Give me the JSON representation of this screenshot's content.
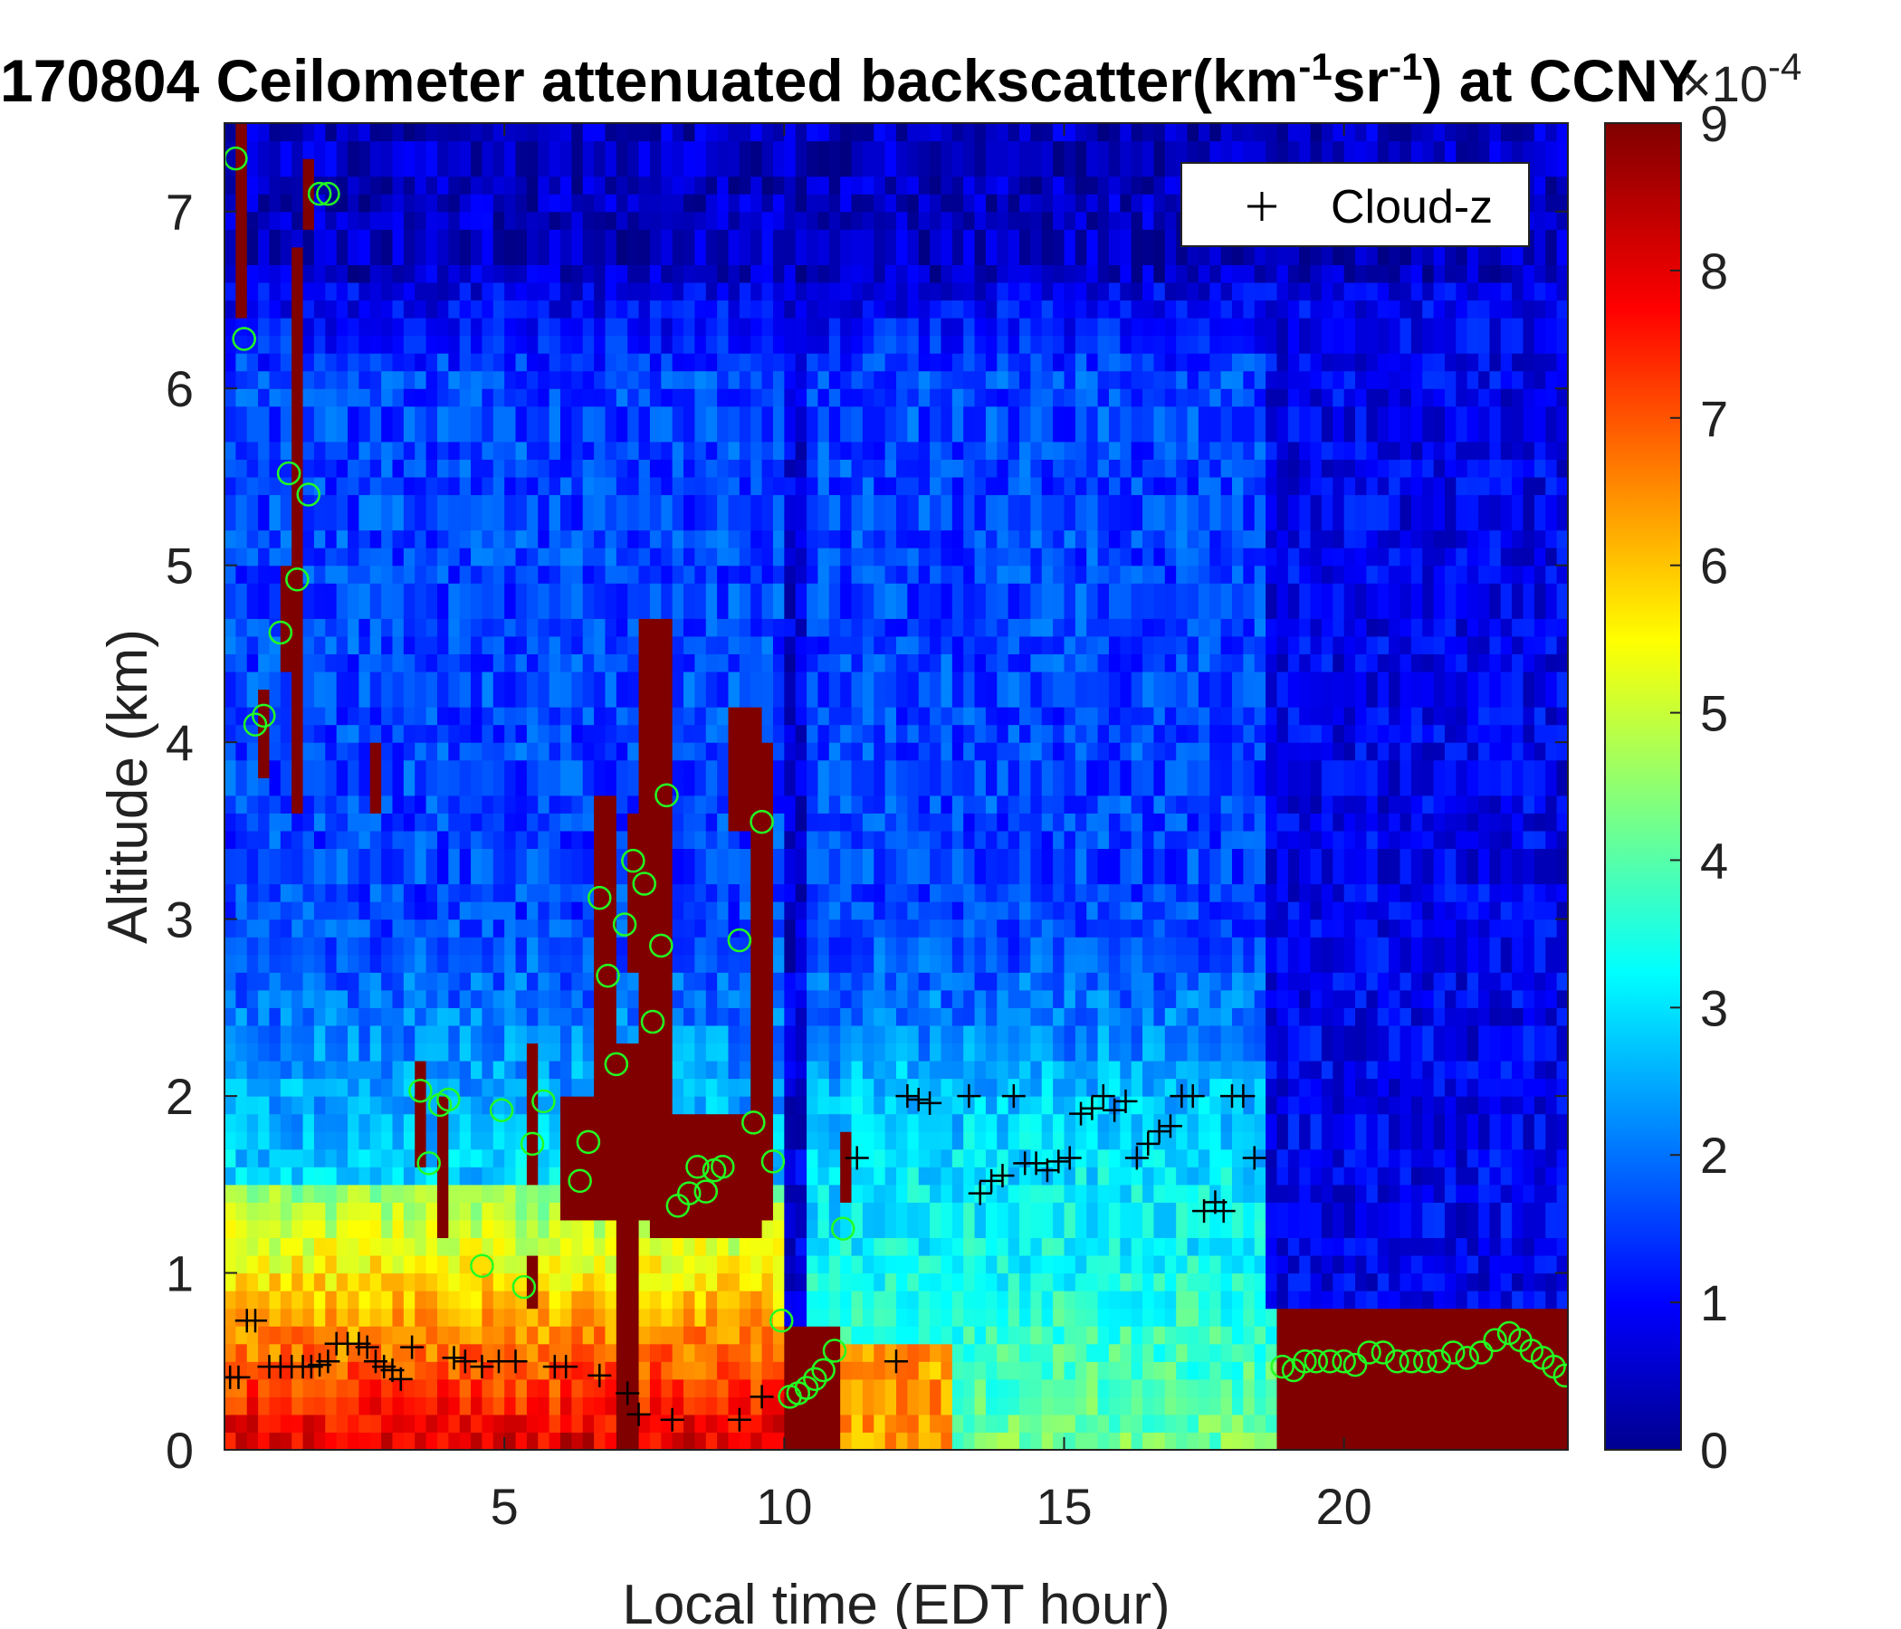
{
  "chart_data": {
    "type": "heatmap",
    "title": {
      "prefix": "170804 Ceilometer attenuated backscatter(km",
      "sup1": "-1",
      "mid": "sr",
      "sup2": "-1",
      "suffix": ") at CCNY"
    },
    "xlabel": "Local time (EDT hour)",
    "ylabel": "Altitude (km)",
    "xlim": [
      0,
      24
    ],
    "ylim": [
      0,
      7.5
    ],
    "xticks": [
      "5",
      "10",
      "15",
      "20"
    ],
    "yticks": [
      "0",
      "1",
      "2",
      "3",
      "4",
      "5",
      "6",
      "7"
    ],
    "colorbar": {
      "range": [
        0,
        9
      ],
      "ticks": [
        "0",
        "1",
        "2",
        "3",
        "4",
        "5",
        "6",
        "7",
        "8",
        "9"
      ],
      "multiplier": "×10",
      "exponent": "-4",
      "colormap": "jet"
    },
    "legend": {
      "label": "Cloud-z",
      "marker": "+",
      "placement": "top-right"
    },
    "cloud_z": [
      [
        0.1,
        0.41
      ],
      [
        0.25,
        0.41
      ],
      [
        0.4,
        0.73
      ],
      [
        0.55,
        0.73
      ],
      [
        0.8,
        0.47
      ],
      [
        1.0,
        0.47
      ],
      [
        1.2,
        0.47
      ],
      [
        1.4,
        0.47
      ],
      [
        1.55,
        0.47
      ],
      [
        1.7,
        0.48
      ],
      [
        1.85,
        0.5
      ],
      [
        2.0,
        0.6
      ],
      [
        2.2,
        0.6
      ],
      [
        2.4,
        0.6
      ],
      [
        2.55,
        0.58
      ],
      [
        2.7,
        0.5
      ],
      [
        2.85,
        0.47
      ],
      [
        3.0,
        0.45
      ],
      [
        3.15,
        0.4
      ],
      [
        3.35,
        0.58
      ],
      [
        4.1,
        0.52
      ],
      [
        4.3,
        0.5
      ],
      [
        4.6,
        0.47
      ],
      [
        4.9,
        0.5
      ],
      [
        5.2,
        0.5
      ],
      [
        5.9,
        0.47
      ],
      [
        6.1,
        0.47
      ],
      [
        6.7,
        0.42
      ],
      [
        7.2,
        0.32
      ],
      [
        7.4,
        0.2
      ],
      [
        8.0,
        0.17
      ],
      [
        9.2,
        0.17
      ],
      [
        9.6,
        0.3
      ],
      [
        11.3,
        1.65
      ],
      [
        12.0,
        0.5
      ],
      [
        12.2,
        2.0
      ],
      [
        12.4,
        1.98
      ],
      [
        12.6,
        1.96
      ],
      [
        13.3,
        2.0
      ],
      [
        13.5,
        1.45
      ],
      [
        13.7,
        1.52
      ],
      [
        13.9,
        1.55
      ],
      [
        14.1,
        2.0
      ],
      [
        14.3,
        1.62
      ],
      [
        14.5,
        1.62
      ],
      [
        14.7,
        1.58
      ],
      [
        14.9,
        1.63
      ],
      [
        15.1,
        1.65
      ],
      [
        15.3,
        1.9
      ],
      [
        15.5,
        1.93
      ],
      [
        15.7,
        2.0
      ],
      [
        15.9,
        1.92
      ],
      [
        16.1,
        1.97
      ],
      [
        16.3,
        1.65
      ],
      [
        16.5,
        1.73
      ],
      [
        16.7,
        1.8
      ],
      [
        16.9,
        1.83
      ],
      [
        17.1,
        2.0
      ],
      [
        17.3,
        2.0
      ],
      [
        17.5,
        1.35
      ],
      [
        17.7,
        1.4
      ],
      [
        17.85,
        1.35
      ],
      [
        18.0,
        2.0
      ],
      [
        18.2,
        2.0
      ],
      [
        18.4,
        1.65
      ]
    ],
    "low_cloud_base": [
      [
        0.2,
        7.3
      ],
      [
        0.35,
        6.28
      ],
      [
        0.55,
        4.1
      ],
      [
        0.7,
        4.15
      ],
      [
        1.0,
        4.62
      ],
      [
        1.15,
        5.52
      ],
      [
        1.3,
        4.92
      ],
      [
        1.5,
        5.4
      ],
      [
        1.7,
        7.1
      ],
      [
        1.85,
        7.1
      ],
      [
        3.5,
        2.03
      ],
      [
        3.65,
        1.62
      ],
      [
        3.85,
        1.95
      ],
      [
        4.0,
        1.98
      ],
      [
        4.6,
        1.04
      ],
      [
        4.95,
        1.92
      ],
      [
        5.35,
        0.92
      ],
      [
        5.5,
        1.73
      ],
      [
        5.7,
        1.97
      ],
      [
        6.35,
        1.52
      ],
      [
        6.5,
        1.74
      ],
      [
        6.7,
        3.12
      ],
      [
        6.85,
        2.68
      ],
      [
        7.0,
        2.18
      ],
      [
        7.15,
        2.97
      ],
      [
        7.3,
        3.33
      ],
      [
        7.5,
        3.2
      ],
      [
        7.65,
        2.42
      ],
      [
        7.8,
        2.85
      ],
      [
        7.9,
        3.7
      ],
      [
        8.1,
        1.38
      ],
      [
        8.3,
        1.45
      ],
      [
        8.45,
        1.6
      ],
      [
        8.6,
        1.46
      ],
      [
        8.75,
        1.58
      ],
      [
        8.9,
        1.6
      ],
      [
        9.2,
        2.88
      ],
      [
        9.45,
        1.85
      ],
      [
        9.6,
        3.55
      ],
      [
        9.8,
        1.63
      ],
      [
        9.95,
        0.73
      ],
      [
        10.1,
        0.3
      ],
      [
        10.25,
        0.32
      ],
      [
        10.4,
        0.35
      ],
      [
        10.55,
        0.4
      ],
      [
        10.7,
        0.45
      ],
      [
        10.9,
        0.56
      ],
      [
        11.05,
        1.25
      ],
      [
        18.9,
        0.47
      ],
      [
        19.1,
        0.45
      ],
      [
        19.3,
        0.5
      ],
      [
        19.5,
        0.5
      ],
      [
        19.75,
        0.5
      ],
      [
        20.0,
        0.5
      ],
      [
        20.2,
        0.48
      ],
      [
        20.45,
        0.55
      ],
      [
        20.7,
        0.55
      ],
      [
        20.95,
        0.5
      ],
      [
        21.2,
        0.5
      ],
      [
        21.45,
        0.5
      ],
      [
        21.7,
        0.5
      ],
      [
        21.95,
        0.55
      ],
      [
        22.2,
        0.52
      ],
      [
        22.45,
        0.55
      ],
      [
        22.7,
        0.62
      ],
      [
        22.95,
        0.66
      ],
      [
        23.15,
        0.62
      ],
      [
        23.35,
        0.56
      ],
      [
        23.55,
        0.52
      ],
      [
        23.75,
        0.47
      ],
      [
        23.95,
        0.42
      ]
    ],
    "colors": {
      "plus": "#000000",
      "circle": "#22ff22"
    }
  }
}
